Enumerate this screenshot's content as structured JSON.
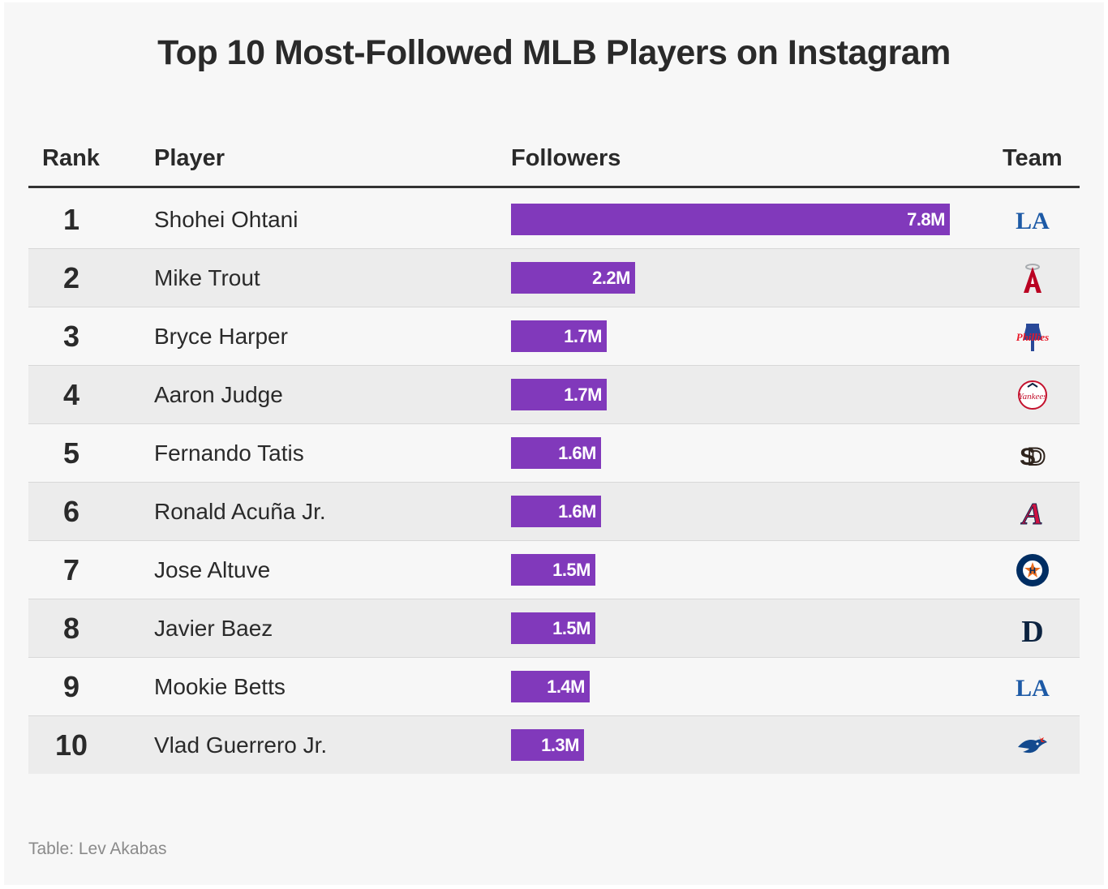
{
  "chart_data": {
    "type": "table",
    "title": "Top 10 Most-Followed MLB Players on Instagram",
    "columns": [
      "Rank",
      "Player",
      "Followers",
      "Team"
    ],
    "value_unit": "M",
    "max_value": 7.8,
    "rows": [
      {
        "rank": "1",
        "player": "Shohei Ohtani",
        "followers": 7.8,
        "label": "7.8M",
        "team_icon": "dodgers-icon"
      },
      {
        "rank": "2",
        "player": "Mike Trout",
        "followers": 2.2,
        "label": "2.2M",
        "team_icon": "angels-icon"
      },
      {
        "rank": "3",
        "player": "Bryce Harper",
        "followers": 1.7,
        "label": "1.7M",
        "team_icon": "phillies-icon"
      },
      {
        "rank": "4",
        "player": "Aaron Judge",
        "followers": 1.7,
        "label": "1.7M",
        "team_icon": "yankees-icon"
      },
      {
        "rank": "5",
        "player": "Fernando Tatis",
        "followers": 1.6,
        "label": "1.6M",
        "team_icon": "padres-icon"
      },
      {
        "rank": "6",
        "player": "Ronald Acuña Jr.",
        "followers": 1.6,
        "label": "1.6M",
        "team_icon": "braves-icon"
      },
      {
        "rank": "7",
        "player": "Jose Altuve",
        "followers": 1.5,
        "label": "1.5M",
        "team_icon": "astros-icon"
      },
      {
        "rank": "8",
        "player": "Javier Baez",
        "followers": 1.5,
        "label": "1.5M",
        "team_icon": "tigers-icon"
      },
      {
        "rank": "9",
        "player": "Mookie Betts",
        "followers": 1.4,
        "label": "1.4M",
        "team_icon": "dodgers-icon"
      },
      {
        "rank": "10",
        "player": "Vlad Guerrero Jr.",
        "followers": 1.3,
        "label": "1.3M",
        "team_icon": "blue-jays-icon"
      }
    ],
    "footer": "Table: Lev Akabas"
  },
  "colors": {
    "bar": "#8139bb",
    "dodgers": "#1d5aa6",
    "angels": "#ba0021",
    "phillies": "#e81828",
    "yankees": "#c4122e",
    "padres": "#2f241d",
    "braves": "#ce1141",
    "astros": "#002d62",
    "tigers": "#0c2340",
    "blue_jays": "#134a8e"
  }
}
